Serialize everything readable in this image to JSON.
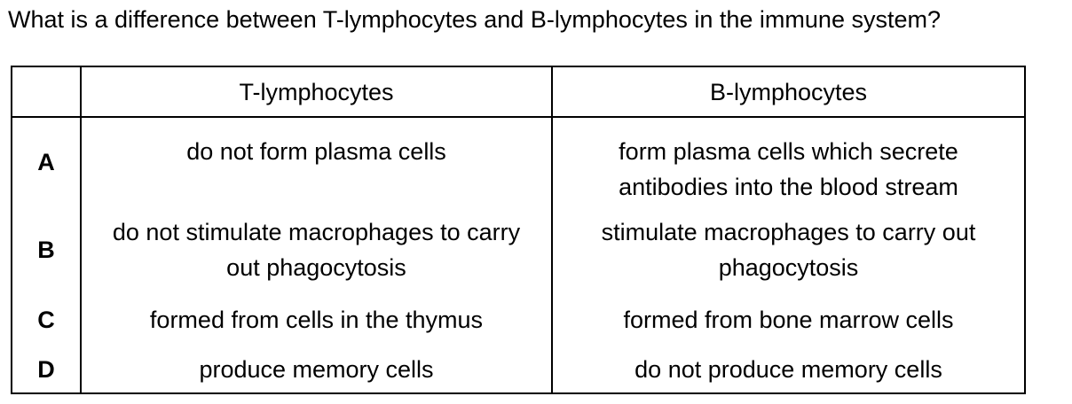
{
  "question": "What is a difference between T-lymphocytes and B-lymphocytes in the immune system?",
  "table": {
    "headers": [
      "",
      "T-lymphocytes",
      "B-lymphocytes"
    ],
    "rows": [
      {
        "letter": "A",
        "t": "do not form plasma cells",
        "b": "form plasma cells which secrete antibodies into the blood stream"
      },
      {
        "letter": "B",
        "t": "do not stimulate macrophages to carry out phagocytosis",
        "b": "stimulate macrophages to carry out phagocytosis"
      },
      {
        "letter": "C",
        "t": "formed from cells in the thymus",
        "b": "formed from bone marrow cells"
      },
      {
        "letter": "D",
        "t": "produce memory cells",
        "b": "do not produce memory cells"
      }
    ]
  }
}
